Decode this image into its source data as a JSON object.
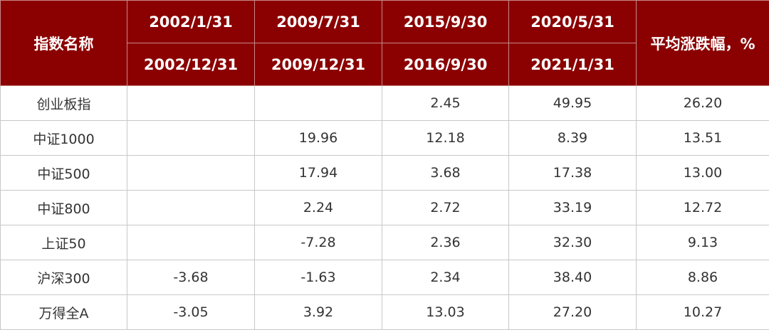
{
  "header": {
    "name": "指数名称",
    "average": "平均涨跌幅，%",
    "periods": [
      {
        "start": "2002/1/31",
        "end": "2002/12/31"
      },
      {
        "start": "2009/7/31",
        "end": "2009/12/31"
      },
      {
        "start": "2015/9/30",
        "end": "2016/9/30"
      },
      {
        "start": "2020/5/31",
        "end": "2021/1/31"
      }
    ]
  },
  "table": {
    "rows": [
      [
        "创业板指",
        null,
        null,
        "2.45",
        "49.95",
        "26.20"
      ],
      [
        "中证1000",
        null,
        "19.96",
        "12.18",
        "8.39",
        "13.51"
      ],
      [
        "中证500",
        null,
        "17.94",
        "3.68",
        "17.38",
        "13.00"
      ],
      [
        "中证800",
        null,
        "2.24",
        "2.72",
        "33.19",
        "12.72"
      ],
      [
        "上证50",
        null,
        "-7.28",
        "2.36",
        "32.30",
        "9.13"
      ],
      [
        "沪深300",
        "-3.68",
        "-1.63",
        "2.34",
        "38.40",
        "8.86"
      ],
      [
        "万得全A",
        "-3.05",
        "3.92",
        "13.03",
        "27.20",
        "10.27"
      ]
    ]
  }
}
